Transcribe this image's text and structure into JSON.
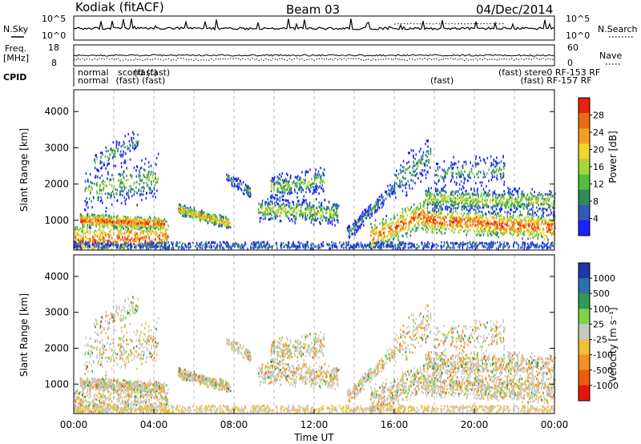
{
  "header": {
    "station": "Kodiak (fitACF)",
    "beam": "Beam 03",
    "date": "04/Dec/2014"
  },
  "chart_data": [
    {
      "type": "line",
      "panel": "noise",
      "left_label": "N.Sky",
      "right_label": "N.Search",
      "left_ticks": [
        "10^5",
        "10^0"
      ],
      "right_ticks": [
        "10^5",
        "10^0"
      ]
    },
    {
      "type": "line",
      "panel": "frequency",
      "left_label_1": "Freq.",
      "left_label_2": "[MHz]",
      "right_label": "Nave",
      "left_ticks": [
        "18",
        "8"
      ],
      "right_ticks": [
        "60",
        "0"
      ]
    },
    {
      "type": "table",
      "panel": "cpid",
      "label": "CPID",
      "entries": [
        {
          "hour": 0.2,
          "row": 0,
          "text": "normal"
        },
        {
          "hour": 0.2,
          "row": 1,
          "text": "normal"
        },
        {
          "hour": 2.2,
          "row": 0,
          "text": "scond (fast)"
        },
        {
          "hour": 2.1,
          "row": 1,
          "text": "(fast)"
        },
        {
          "hour": 3.0,
          "row": 0,
          "text": "(fast)"
        },
        {
          "hour": 3.4,
          "row": 1,
          "text": "(fast)"
        },
        {
          "hour": 17.8,
          "row": 1,
          "text": "(fast)"
        },
        {
          "hour": 21.2,
          "row": 0,
          "text": "(fast)"
        },
        {
          "hour": 22.5,
          "row": 0,
          "text": "stere0 RF-153 RF"
        },
        {
          "hour": 22.3,
          "row": 1,
          "text": "(fast) RF-157 RF"
        }
      ]
    },
    {
      "type": "heatmap",
      "panel": "power",
      "ylabel": "Slant Range [km]",
      "xlim": [
        0,
        24
      ],
      "ylim": [
        180,
        4600
      ],
      "yticks": [
        1000,
        2000,
        3000,
        4000
      ],
      "colorbar": {
        "label": "Power [dB]",
        "range": [
          0,
          32
        ],
        "ticks": [
          4,
          8,
          12,
          16,
          20,
          24,
          28
        ]
      },
      "colors": [
        "#1a22ff",
        "#2f5cb8",
        "#2f8a5a",
        "#4fbf3f",
        "#a8d63a",
        "#f2d62a",
        "#f2a020",
        "#ee6a10",
        "#e8200c"
      ]
    },
    {
      "type": "heatmap",
      "panel": "velocity",
      "ylabel": "Slant Range [km]",
      "xlabel": "Time UT",
      "xlim": [
        0,
        24
      ],
      "ylim": [
        180,
        4600
      ],
      "yticks": [
        1000,
        2000,
        3000,
        4000
      ],
      "xticks": [
        "00:00",
        "04:00",
        "08:00",
        "12:00",
        "16:00",
        "20:00",
        "00:00"
      ],
      "colorbar": {
        "label": "Velocity [m s⁻¹]",
        "ticks": [
          "1000",
          "500",
          "100",
          "25",
          "-25",
          "-100",
          "-500",
          "-1000"
        ]
      },
      "colors": [
        "#1a3aa8",
        "#2f6fb0",
        "#2f9a55",
        "#7fd24a",
        "#c8c8c8",
        "#f2c030",
        "#f29020",
        "#ee5a10",
        "#e8140c"
      ]
    }
  ]
}
